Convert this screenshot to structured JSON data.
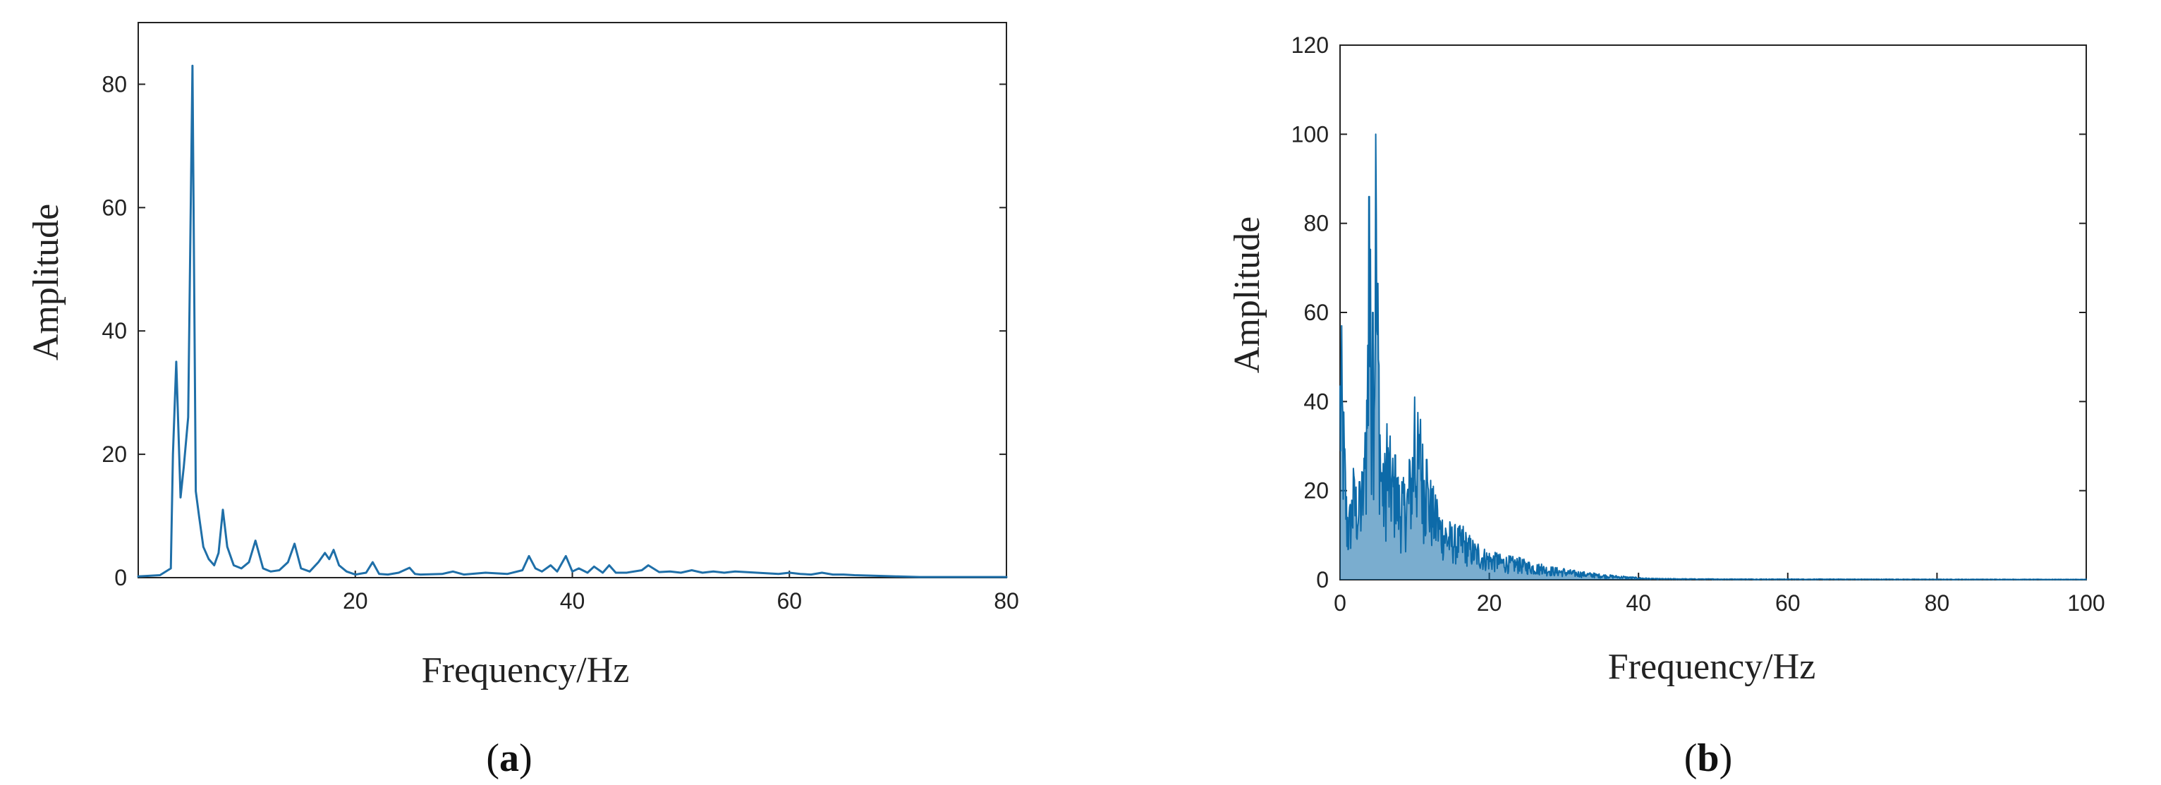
{
  "chart_data": [
    {
      "panel": "a",
      "panel_label_open": "(",
      "panel_label_letter": "a",
      "panel_label_close": ")",
      "type": "line",
      "xlabel": "Frequency/Hz",
      "ylabel": "Amplitude",
      "xlim": [
        0,
        80
      ],
      "ylim": [
        0,
        90
      ],
      "xticks": [
        20,
        40,
        60,
        80
      ],
      "yticks": [
        0,
        20,
        40,
        60,
        80
      ],
      "grid": false,
      "color": "#1f6fa8",
      "series": [
        {
          "x": [
            0,
            2,
            3,
            3.2,
            3.5,
            3.9,
            4.2,
            4.6,
            5.0,
            5.3,
            5.6,
            6.0,
            6.5,
            7.0,
            7.4,
            7.8,
            8.2,
            8.8,
            9.5,
            10.2,
            10.8,
            11.5,
            12.2,
            13,
            13.8,
            14.4,
            15,
            15.8,
            16.6,
            17.2,
            17.6,
            18.0,
            18.5,
            19.2,
            20,
            21,
            21.6,
            22.2,
            23,
            24,
            25,
            25.5,
            26,
            28,
            29,
            30,
            32,
            34,
            35.4,
            36,
            36.6,
            37.2,
            38,
            38.6,
            39.4,
            40,
            40.6,
            41.4,
            42,
            42.8,
            43.4,
            44,
            45,
            46.4,
            47,
            48,
            49,
            50,
            51,
            52,
            53,
            54,
            55,
            56,
            57,
            58,
            59,
            60,
            61,
            62,
            63,
            64,
            65,
            66,
            68,
            70,
            72,
            75,
            78,
            80
          ],
          "y": [
            0.2,
            0.4,
            1.5,
            20,
            35,
            13,
            18,
            26,
            83,
            14,
            10,
            5,
            3,
            2,
            4,
            11,
            5,
            2,
            1.5,
            2.5,
            6,
            1.5,
            1,
            1.2,
            2.5,
            5.5,
            1.5,
            1,
            2.5,
            4,
            3,
            4.5,
            2,
            1,
            0.5,
            0.8,
            2.5,
            0.6,
            0.5,
            0.8,
            1.6,
            0.6,
            0.5,
            0.6,
            1.0,
            0.5,
            0.8,
            0.6,
            1.2,
            3.5,
            1.5,
            1.0,
            2.0,
            1.0,
            3.5,
            1.0,
            1.5,
            0.8,
            1.8,
            0.8,
            2.0,
            0.8,
            0.8,
            1.2,
            2.0,
            0.9,
            1.0,
            0.8,
            1.2,
            0.8,
            1.0,
            0.8,
            1.0,
            0.9,
            0.8,
            0.7,
            0.6,
            0.8,
            0.6,
            0.5,
            0.8,
            0.5,
            0.5,
            0.4,
            0.3,
            0.2,
            0.1,
            0.1,
            0.1,
            0.1
          ]
        }
      ]
    },
    {
      "panel": "b",
      "panel_label_open": "(",
      "panel_label_letter": "b",
      "panel_label_close": ")",
      "type": "line",
      "xlabel": "Frequency/Hz",
      "ylabel": "Amplitude",
      "xlim": [
        0,
        100
      ],
      "ylim": [
        0,
        120
      ],
      "xticks": [
        0,
        20,
        40,
        60,
        80,
        100
      ],
      "yticks": [
        0,
        20,
        40,
        60,
        80,
        100,
        120
      ],
      "grid": false,
      "color": "#0d6aa8",
      "noisy_spectrum": {
        "peaks": [
          {
            "x": 0.2,
            "y": 57
          },
          {
            "x": 1.0,
            "y": 14
          },
          {
            "x": 1.8,
            "y": 25
          },
          {
            "x": 2.6,
            "y": 22
          },
          {
            "x": 3.4,
            "y": 33
          },
          {
            "x": 3.9,
            "y": 86
          },
          {
            "x": 4.4,
            "y": 60
          },
          {
            "x": 4.8,
            "y": 100
          },
          {
            "x": 5.6,
            "y": 24
          },
          {
            "x": 6.3,
            "y": 35
          },
          {
            "x": 7.4,
            "y": 28
          },
          {
            "x": 8.3,
            "y": 22
          },
          {
            "x": 9.3,
            "y": 27
          },
          {
            "x": 10.0,
            "y": 41
          },
          {
            "x": 10.8,
            "y": 36
          },
          {
            "x": 11.6,
            "y": 27
          },
          {
            "x": 13.0,
            "y": 18
          },
          {
            "x": 14.7,
            "y": 13
          },
          {
            "x": 16.5,
            "y": 12
          },
          {
            "x": 18.5,
            "y": 8
          },
          {
            "x": 21,
            "y": 6
          },
          {
            "x": 24,
            "y": 5
          },
          {
            "x": 27,
            "y": 3.5
          },
          {
            "x": 30,
            "y": 2.5
          },
          {
            "x": 34,
            "y": 1.5
          },
          {
            "x": 38,
            "y": 0.8
          },
          {
            "x": 42,
            "y": 0.3
          },
          {
            "x": 50,
            "y": 0.2
          },
          {
            "x": 100,
            "y": 0.1
          }
        ]
      }
    }
  ]
}
